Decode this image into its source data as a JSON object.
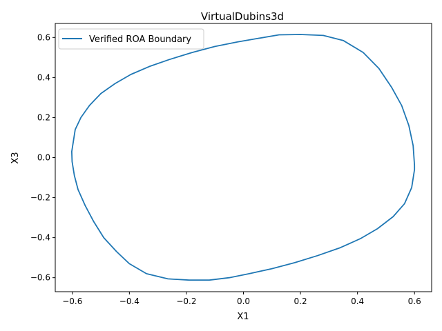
{
  "chart_data": {
    "type": "line",
    "title": "VirtualDubins3d",
    "xlabel": "X1",
    "ylabel": "X3",
    "xlim": [
      -0.66,
      0.66
    ],
    "ylim": [
      -0.67,
      0.67
    ],
    "xticks": [
      -0.6,
      -0.4,
      -0.2,
      0.0,
      0.2,
      0.4,
      0.6
    ],
    "xtick_labels": [
      "−0.6",
      "−0.4",
      "−0.2",
      "0.0",
      "0.2",
      "0.4",
      "0.6"
    ],
    "yticks": [
      0.6,
      0.4,
      0.2,
      0.0,
      -0.2,
      -0.4,
      -0.6
    ],
    "ytick_labels": [
      "0.6",
      "0.4",
      "0.2",
      "0.0",
      "−0.2",
      "−0.4",
      "−0.6"
    ],
    "grid": false,
    "legend_position": "upper-left",
    "series": [
      {
        "name": "Verified ROA Boundary",
        "color": "#1f77b4",
        "x": [
          0.6,
          0.595,
          0.58,
          0.555,
          0.52,
          0.475,
          0.42,
          0.35,
          0.28,
          0.2,
          0.125,
          0.05,
          -0.02,
          -0.1,
          -0.18,
          -0.26,
          -0.33,
          -0.395,
          -0.45,
          -0.5,
          -0.54,
          -0.57,
          -0.59,
          -0.602,
          -0.601,
          -0.593,
          -0.58,
          -0.555,
          -0.525,
          -0.49,
          -0.445,
          -0.4,
          -0.34,
          -0.265,
          -0.19,
          -0.12,
          -0.05,
          0.02,
          0.1,
          0.18,
          0.26,
          0.34,
          0.41,
          0.47,
          0.525,
          0.565,
          0.59,
          0.6
        ],
        "y": [
          -0.04,
          0.06,
          0.16,
          0.26,
          0.35,
          0.445,
          0.525,
          0.585,
          0.61,
          0.615,
          0.613,
          0.595,
          0.578,
          0.555,
          0.525,
          0.49,
          0.455,
          0.415,
          0.37,
          0.32,
          0.26,
          0.2,
          0.14,
          0.03,
          -0.02,
          -0.09,
          -0.16,
          -0.24,
          -0.32,
          -0.4,
          -0.47,
          -0.53,
          -0.58,
          -0.606,
          -0.612,
          -0.612,
          -0.6,
          -0.58,
          -0.555,
          -0.525,
          -0.49,
          -0.45,
          -0.405,
          -0.355,
          -0.295,
          -0.23,
          -0.15,
          -0.06
        ]
      }
    ]
  }
}
